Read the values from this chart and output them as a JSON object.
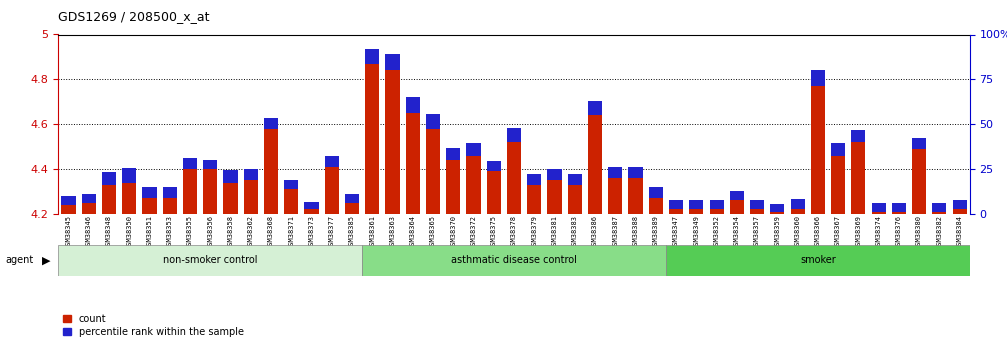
{
  "title": "GDS1269 / 208500_x_at",
  "samples": [
    "GSM38345",
    "GSM38346",
    "GSM38348",
    "GSM38350",
    "GSM38351",
    "GSM38353",
    "GSM38355",
    "GSM38356",
    "GSM38358",
    "GSM38362",
    "GSM38368",
    "GSM38371",
    "GSM38373",
    "GSM38377",
    "GSM38385",
    "GSM38361",
    "GSM38363",
    "GSM38364",
    "GSM38365",
    "GSM38370",
    "GSM38372",
    "GSM38375",
    "GSM38378",
    "GSM38379",
    "GSM38381",
    "GSM38383",
    "GSM38386",
    "GSM38387",
    "GSM38388",
    "GSM38389",
    "GSM38347",
    "GSM38349",
    "GSM38352",
    "GSM38354",
    "GSM38357",
    "GSM38359",
    "GSM38360",
    "GSM38366",
    "GSM38367",
    "GSM38369",
    "GSM38374",
    "GSM38376",
    "GSM38380",
    "GSM38382",
    "GSM38384"
  ],
  "red_values": [
    4.24,
    4.25,
    4.33,
    4.34,
    4.27,
    4.27,
    4.4,
    4.4,
    4.34,
    4.35,
    4.58,
    4.31,
    4.22,
    4.41,
    4.25,
    4.87,
    4.84,
    4.65,
    4.58,
    4.44,
    4.46,
    4.39,
    4.52,
    4.33,
    4.35,
    4.33,
    4.64,
    4.36,
    4.36,
    4.27,
    4.22,
    4.22,
    4.22,
    4.26,
    4.22,
    4.21,
    4.22,
    4.77,
    4.46,
    4.52,
    4.21,
    4.21,
    4.49,
    4.21,
    4.22
  ],
  "blue_pct": [
    5,
    5,
    7,
    8,
    6,
    6,
    6,
    5,
    7,
    6,
    6,
    5,
    4,
    6,
    5,
    8,
    9,
    9,
    8,
    7,
    7,
    6,
    8,
    6,
    6,
    6,
    8,
    6,
    6,
    6,
    5,
    5,
    5,
    5,
    5,
    4,
    6,
    9,
    7,
    7,
    5,
    5,
    6,
    5,
    5
  ],
  "groups": [
    {
      "label": "non-smoker control",
      "start": 0,
      "end": 15,
      "color": "#d5f0d5"
    },
    {
      "label": "asthmatic disease control",
      "start": 15,
      "end": 30,
      "color": "#88dd88"
    },
    {
      "label": "smoker",
      "start": 30,
      "end": 45,
      "color": "#55cc55"
    }
  ],
  "ylim_left": [
    4.2,
    5.0
  ],
  "ylim_right": [
    0,
    100
  ],
  "yticks_left": [
    4.2,
    4.4,
    4.6,
    4.8,
    5.0
  ],
  "ytick_labels_left": [
    "4.2",
    "4.4",
    "4.6",
    "4.8",
    "5"
  ],
  "yticks_right": [
    0,
    25,
    50,
    75,
    100
  ],
  "ytick_labels_right": [
    "0",
    "25",
    "50",
    "75",
    "100%"
  ],
  "bar_color_red": "#cc2200",
  "bar_color_blue": "#2222cc",
  "axis_color_left": "#cc0000",
  "axis_color_right": "#0000cc",
  "background_color": "#ffffff",
  "legend_count_label": "count",
  "legend_pct_label": "percentile rank within the sample"
}
